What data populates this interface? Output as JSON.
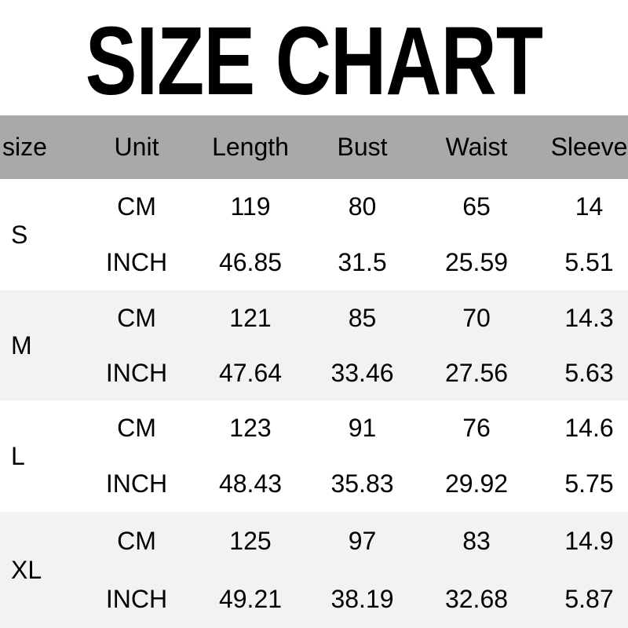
{
  "title": "SIZE CHART",
  "colors": {
    "header_bg": "#a9a9a9",
    "row_bg": "#ffffff",
    "row_alt_bg": "#f2f2f2",
    "text": "#000000"
  },
  "size_chart": {
    "columns": [
      "size",
      "Unit",
      "Length",
      "Bust",
      "Waist",
      "Sleeve"
    ],
    "units": [
      "CM",
      "INCH"
    ],
    "rows": [
      {
        "size": "S",
        "cm": [
          "119",
          "80",
          "65",
          "14"
        ],
        "inch": [
          "46.85",
          "31.5",
          "25.59",
          "5.51"
        ]
      },
      {
        "size": "M",
        "cm": [
          "121",
          "85",
          "70",
          "14.3"
        ],
        "inch": [
          "47.64",
          "33.46",
          "27.56",
          "5.63"
        ]
      },
      {
        "size": "L",
        "cm": [
          "123",
          "91",
          "76",
          "14.6"
        ],
        "inch": [
          "48.43",
          "35.83",
          "29.92",
          "5.75"
        ]
      },
      {
        "size": "XL",
        "cm": [
          "125",
          "97",
          "83",
          "14.9"
        ],
        "inch": [
          "49.21",
          "38.19",
          "32.68",
          "5.87"
        ]
      }
    ]
  }
}
